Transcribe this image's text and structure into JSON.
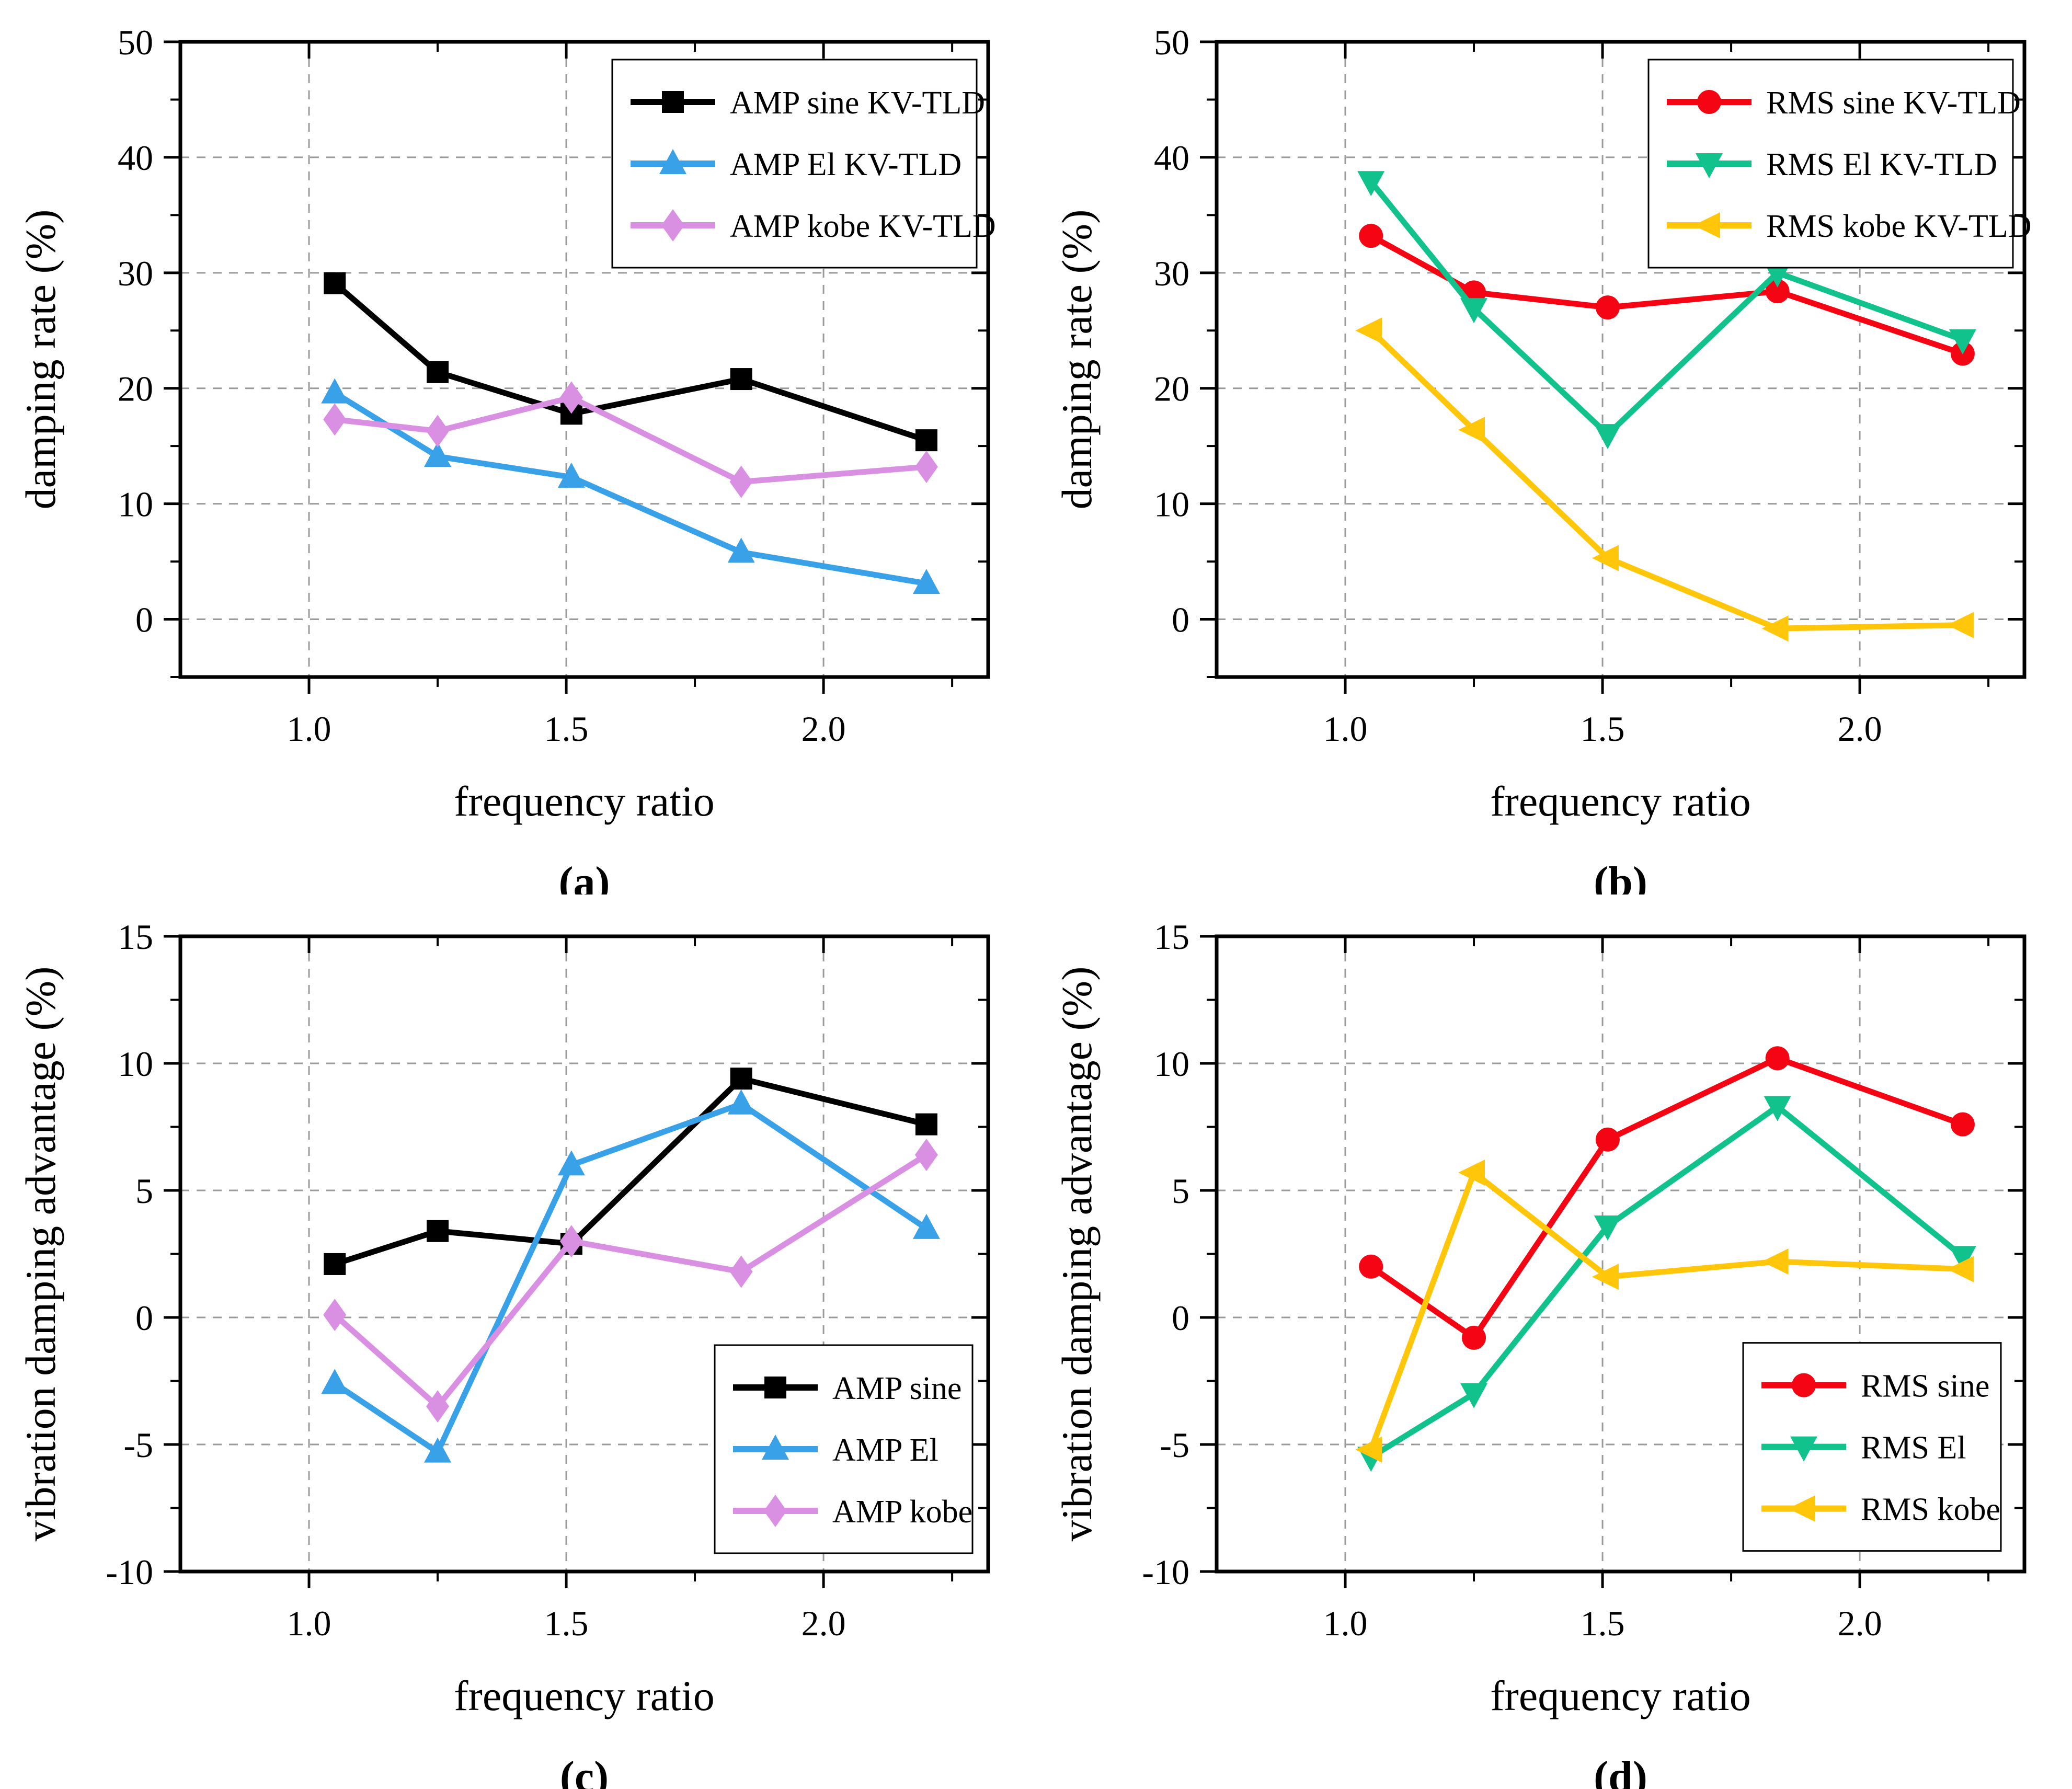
{
  "chart_data": [
    {
      "type": "line",
      "panel_label": "(a)",
      "xlabel": "frequency ratio",
      "ylabel": "damping rate (%)",
      "xlim": [
        0.75,
        2.32
      ],
      "ylim": [
        -5,
        50
      ],
      "xticks": [
        1.0,
        1.5,
        2.0
      ],
      "xtick_labels": [
        "1.0",
        "1.5",
        "2.0"
      ],
      "xminor": [
        1.25,
        1.75,
        2.25
      ],
      "yticks": [
        0,
        10,
        20,
        30,
        40,
        50
      ],
      "ytick_labels": [
        "0",
        "10",
        "20",
        "30",
        "40",
        "50"
      ],
      "yminor": [
        -5,
        5,
        15,
        25,
        35,
        45
      ],
      "grid_x": [
        1.0,
        1.5,
        2.0
      ],
      "grid_y": [
        0,
        10,
        20,
        30,
        40
      ],
      "grid": true,
      "legend_position": "top-right",
      "x": [
        1.05,
        1.25,
        1.51,
        1.84,
        2.2
      ],
      "series": [
        {
          "name": "AMP sine KV-TLD",
          "color": "#000000",
          "marker": "square",
          "values": [
            29.1,
            21.4,
            17.8,
            20.8,
            15.5
          ]
        },
        {
          "name": "AMP El KV-TLD",
          "color": "#38A1E8",
          "marker": "triangle-up",
          "values": [
            19.6,
            14.1,
            12.3,
            5.8,
            3.1
          ]
        },
        {
          "name": "AMP kobe KV-TLD",
          "color": "#D990E2",
          "marker": "diamond",
          "values": [
            17.3,
            16.3,
            19.2,
            11.9,
            13.2
          ]
        }
      ]
    },
    {
      "type": "line",
      "panel_label": "(b)",
      "xlabel": "frequency ratio",
      "ylabel": "damping rate (%)",
      "xlim": [
        0.75,
        2.32
      ],
      "ylim": [
        -5,
        50
      ],
      "xticks": [
        1.0,
        1.5,
        2.0
      ],
      "xtick_labels": [
        "1.0",
        "1.5",
        "2.0"
      ],
      "xminor": [
        1.25,
        1.75,
        2.25
      ],
      "yticks": [
        0,
        10,
        20,
        30,
        40,
        50
      ],
      "ytick_labels": [
        "0",
        "10",
        "20",
        "30",
        "40",
        "50"
      ],
      "yminor": [
        -5,
        5,
        15,
        25,
        35,
        45
      ],
      "grid_x": [
        1.0,
        1.5,
        2.0
      ],
      "grid_y": [
        0,
        10,
        20,
        30,
        40
      ],
      "grid": true,
      "legend_position": "top-right",
      "x": [
        1.05,
        1.25,
        1.51,
        1.84,
        2.2
      ],
      "series": [
        {
          "name": "RMS sine KV-TLD",
          "color": "#F50513",
          "marker": "circle",
          "values": [
            33.2,
            28.3,
            27.0,
            28.4,
            23.0
          ]
        },
        {
          "name": "RMS El KV-TLD",
          "color": "#12C28D",
          "marker": "triangle-down",
          "values": [
            37.9,
            26.9,
            16.0,
            30.0,
            24.2
          ]
        },
        {
          "name": "RMS kobe KV-TLD",
          "color": "#FFC60A",
          "marker": "triangle-left",
          "values": [
            25.0,
            16.4,
            5.3,
            -0.8,
            -0.5
          ]
        }
      ]
    },
    {
      "type": "line",
      "panel_label": "(c)",
      "xlabel": "frequency ratio",
      "ylabel": "vibration damping advantage (%)",
      "xlim": [
        0.75,
        2.32
      ],
      "ylim": [
        -10,
        15
      ],
      "xticks": [
        1.0,
        1.5,
        2.0
      ],
      "xtick_labels": [
        "1.0",
        "1.5",
        "2.0"
      ],
      "xminor": [
        1.25,
        1.75,
        2.25
      ],
      "yticks": [
        -10,
        -5,
        0,
        5,
        10,
        15
      ],
      "ytick_labels": [
        "-10",
        "-5",
        "0",
        "5",
        "10",
        "15"
      ],
      "yminor": [
        -7.5,
        -2.5,
        2.5,
        7.5,
        12.5
      ],
      "grid_x": [
        1.0,
        1.5,
        2.0
      ],
      "grid_y": [
        -5,
        0,
        5,
        10
      ],
      "grid": true,
      "legend_position": "bottom-right",
      "x": [
        1.05,
        1.25,
        1.51,
        1.84,
        2.2
      ],
      "series": [
        {
          "name": "AMP sine",
          "color": "#000000",
          "marker": "square",
          "values": [
            2.1,
            3.4,
            2.9,
            9.4,
            7.6
          ]
        },
        {
          "name": "AMP El",
          "color": "#38A1E8",
          "marker": "triangle-up",
          "values": [
            -2.6,
            -5.3,
            6.0,
            8.4,
            3.5
          ]
        },
        {
          "name": "AMP kobe",
          "color": "#D990E2",
          "marker": "diamond",
          "values": [
            0.1,
            -3.5,
            3.0,
            1.8,
            6.4
          ]
        }
      ]
    },
    {
      "type": "line",
      "panel_label": "(d)",
      "xlabel": "frequency ratio",
      "ylabel": "vibration damping advantage (%)",
      "xlim": [
        0.75,
        2.32
      ],
      "ylim": [
        -10,
        15
      ],
      "xticks": [
        1.0,
        1.5,
        2.0
      ],
      "xtick_labels": [
        "1.0",
        "1.5",
        "2.0"
      ],
      "xminor": [
        1.25,
        1.75,
        2.25
      ],
      "yticks": [
        -10,
        -5,
        0,
        5,
        10,
        15
      ],
      "ytick_labels": [
        "-10",
        "-5",
        "0",
        "5",
        "10",
        "15"
      ],
      "yminor": [
        -7.5,
        -2.5,
        2.5,
        7.5,
        12.5
      ],
      "grid_x": [
        1.0,
        1.5,
        2.0
      ],
      "grid_y": [
        -5,
        0,
        5,
        10
      ],
      "grid": true,
      "legend_position": "right-low",
      "x": [
        1.05,
        1.25,
        1.51,
        1.84,
        2.2
      ],
      "series": [
        {
          "name": "RMS sine",
          "color": "#F50513",
          "marker": "circle",
          "values": [
            2.0,
            -0.8,
            7.0,
            10.2,
            7.6
          ]
        },
        {
          "name": "RMS El",
          "color": "#12C28D",
          "marker": "triangle-down",
          "values": [
            -5.5,
            -3.0,
            3.6,
            8.3,
            2.4
          ]
        },
        {
          "name": "RMS kobe",
          "color": "#FFC60A",
          "marker": "triangle-left",
          "values": [
            -5.2,
            5.7,
            1.6,
            2.2,
            1.9
          ]
        }
      ]
    }
  ],
  "styles": {
    "grid_color": "#9a9a9a",
    "frame_color": "#000000",
    "background": "#ffffff"
  }
}
